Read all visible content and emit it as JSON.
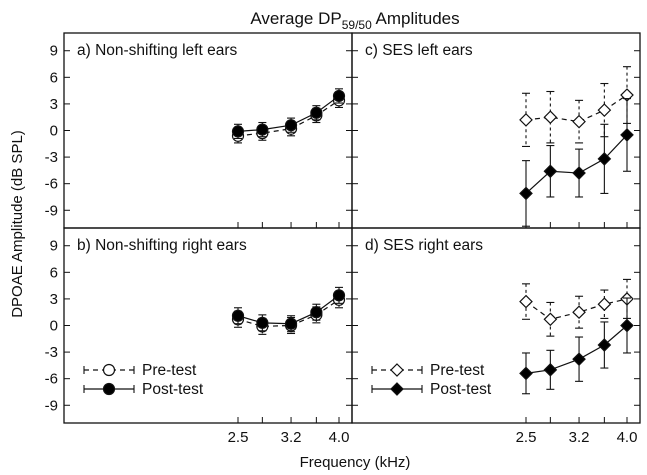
{
  "figure": {
    "title_main": "Average DP",
    "title_sub": "59/50",
    "title_rest": " Amplitudes",
    "ylabel": "DPOAE Amplitude (dB SPL)",
    "xlabel": "Frequency (kHz)"
  },
  "chart_data": [
    {
      "type": "line",
      "panel": "a) Non-shifting left ears",
      "x": [
        2.5,
        2.8,
        3.2,
        3.6,
        4.0
      ],
      "ylim": [
        -11,
        11
      ],
      "yticks": [
        "9",
        "6",
        "3",
        "0",
        "-3",
        "-6",
        "-9"
      ],
      "xticks": [],
      "marker": "circle",
      "series": [
        {
          "name": "Pre-test",
          "values": [
            -0.6,
            -0.3,
            0.2,
            1.7,
            3.4
          ],
          "errors": [
            0.8,
            0.8,
            0.8,
            0.8,
            0.8
          ],
          "style": "open-dashed"
        },
        {
          "name": "Post-test",
          "values": [
            -0.1,
            0.1,
            0.6,
            2.0,
            3.9
          ],
          "errors": [
            0.8,
            0.8,
            0.8,
            0.8,
            0.8
          ],
          "style": "filled-solid"
        }
      ]
    },
    {
      "type": "line",
      "panel": "c) SES left ears",
      "x": [
        2.5,
        2.8,
        3.2,
        3.6,
        4.0
      ],
      "ylim": [
        -11,
        11
      ],
      "yticks": [],
      "xticks": [],
      "marker": "diamond",
      "series": [
        {
          "name": "Pre-test",
          "values": [
            1.2,
            1.5,
            1.0,
            2.3,
            4.0
          ],
          "errors": [
            3.0,
            2.9,
            2.4,
            3.0,
            3.2
          ],
          "style": "open-dashed"
        },
        {
          "name": "Post-test",
          "values": [
            -7.1,
            -4.6,
            -4.8,
            -3.2,
            -0.5
          ],
          "errors": [
            3.7,
            2.9,
            2.7,
            3.9,
            4.1
          ],
          "style": "filled-solid"
        }
      ]
    },
    {
      "type": "line",
      "panel": "b) Non-shifting right ears",
      "x": [
        2.5,
        2.8,
        3.2,
        3.6,
        4.0
      ],
      "ylim": [
        -11,
        11
      ],
      "yticks": [
        "9",
        "6",
        "3",
        "0",
        "-3",
        "-6",
        "-9"
      ],
      "xticks": [
        "2.5",
        "3.2",
        "4.0"
      ],
      "marker": "circle",
      "legend": "bottom-left",
      "series": [
        {
          "name": "Pre-test",
          "values": [
            0.7,
            -0.1,
            0.0,
            1.2,
            2.9
          ],
          "errors": [
            0.9,
            0.9,
            0.9,
            0.9,
            0.9
          ],
          "style": "open-dashed"
        },
        {
          "name": "Post-test",
          "values": [
            1.1,
            0.3,
            0.2,
            1.5,
            3.4
          ],
          "errors": [
            0.9,
            0.9,
            0.9,
            0.9,
            0.9
          ],
          "style": "filled-solid"
        }
      ]
    },
    {
      "type": "line",
      "panel": "d) SES right ears",
      "x": [
        2.5,
        2.8,
        3.2,
        3.6,
        4.0
      ],
      "ylim": [
        -11,
        11
      ],
      "yticks": [],
      "xticks": [
        "2.5",
        "3.2",
        "4.0"
      ],
      "marker": "diamond",
      "legend": "bottom-left",
      "series": [
        {
          "name": "Pre-test",
          "values": [
            2.7,
            0.7,
            1.5,
            2.4,
            3.0
          ],
          "errors": [
            2.0,
            1.9,
            1.8,
            1.6,
            2.2
          ],
          "style": "open-dashed"
        },
        {
          "name": "Post-test",
          "values": [
            -5.4,
            -5.0,
            -3.8,
            -2.2,
            0.0
          ],
          "errors": [
            2.3,
            2.2,
            2.5,
            2.6,
            3.1
          ],
          "style": "filled-solid"
        }
      ]
    }
  ]
}
